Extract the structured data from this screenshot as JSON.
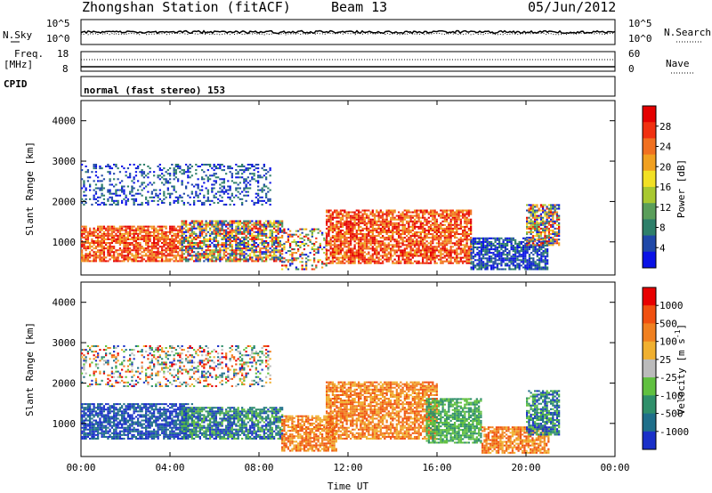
{
  "header": {
    "station": "Zhongshan Station (fitACF)",
    "beam": "Beam 13",
    "date": "05/Jun/2012"
  },
  "noise_panel": {
    "left_label": "N.Sky",
    "right_label": "N.Search",
    "left_ticks": [
      "10^5",
      "10^0"
    ],
    "right_ticks": [
      "10^5",
      "10^0"
    ]
  },
  "freq_panel": {
    "left_label_1": "Freq.",
    "left_label_2": "[MHz]",
    "right_label": "Nave",
    "left_ticks": [
      "18",
      "8"
    ],
    "right_ticks": [
      "60",
      "0"
    ]
  },
  "cpid": {
    "label": "CPID",
    "text": "normal (fast stereo) 153"
  },
  "chart_data": [
    {
      "type": "heatmap",
      "title": "",
      "xlabel": "",
      "ylabel": "Slant Range [km]",
      "x_ticks": [
        "00:00",
        "04:00",
        "08:00",
        "12:00",
        "16:00",
        "20:00",
        "00:00"
      ],
      "y_ticks": [
        "1000",
        "2000",
        "3000",
        "4000"
      ],
      "xlim_hours": [
        0,
        24
      ],
      "ylim_km": [
        180,
        4500
      ],
      "colorbar": {
        "label": "Power [dB]",
        "ticks": [
          "28",
          "24",
          "20",
          "16",
          "12",
          "8",
          "4"
        ],
        "range": [
          0,
          30
        ],
        "colors": [
          "#0a12e6",
          "#1f48a8",
          "#2e7f6a",
          "#5a9e5a",
          "#a8c830",
          "#f2e024",
          "#f0a020",
          "#f07020",
          "#f03010",
          "#e40000"
        ]
      },
      "bands": [
        {
          "t": [
            0.0,
            4.5
          ],
          "r": [
            500,
            1400
          ],
          "level": "high"
        },
        {
          "t": [
            4.5,
            9.0
          ],
          "r": [
            500,
            1500
          ],
          "level": "mixed"
        },
        {
          "t": [
            9.0,
            11.0
          ],
          "r": [
            300,
            1300
          ],
          "level": "sparse"
        },
        {
          "t": [
            11.0,
            17.5
          ],
          "r": [
            450,
            1800
          ],
          "level": "high"
        },
        {
          "t": [
            17.5,
            21.0
          ],
          "r": [
            300,
            1100
          ],
          "level": "low"
        },
        {
          "t": [
            20.0,
            21.5
          ],
          "r": [
            900,
            1900
          ],
          "level": "mixed"
        },
        {
          "t": [
            0.0,
            8.5
          ],
          "r": [
            1900,
            2900
          ],
          "level": "low"
        }
      ]
    },
    {
      "type": "heatmap",
      "title": "",
      "xlabel": "Time UT",
      "ylabel": "Slant Range [km]",
      "x_ticks": [
        "00:00",
        "04:00",
        "08:00",
        "12:00",
        "16:00",
        "20:00",
        "00:00"
      ],
      "y_ticks": [
        "1000",
        "2000",
        "3000",
        "4000"
      ],
      "xlim_hours": [
        0,
        24
      ],
      "ylim_km": [
        180,
        4500
      ],
      "colorbar": {
        "label": "Velocity [m s^-1]",
        "unit_label": "Velocity",
        "unit_bracket": "[m s",
        "unit_exp": "-1",
        "unit_close": "]",
        "ticks": [
          "1000",
          "500",
          "100",
          "25",
          "-25",
          "-100",
          "-500",
          "-1000"
        ],
        "colors": [
          "#1a30c8",
          "#1f6f8a",
          "#2f8f6a",
          "#60c040",
          "#bbbbbb",
          "#f0b030",
          "#f08020",
          "#f05010",
          "#e80000"
        ]
      },
      "bands": [
        {
          "t": [
            0.0,
            5.0
          ],
          "r": [
            600,
            1500
          ],
          "level": "blue"
        },
        {
          "t": [
            4.5,
            9.0
          ],
          "r": [
            600,
            1400
          ],
          "level": "greenblue"
        },
        {
          "t": [
            9.0,
            11.5
          ],
          "r": [
            300,
            1200
          ],
          "level": "orange"
        },
        {
          "t": [
            11.0,
            16.0
          ],
          "r": [
            600,
            2000
          ],
          "level": "orange"
        },
        {
          "t": [
            15.5,
            18.0
          ],
          "r": [
            500,
            1600
          ],
          "level": "green"
        },
        {
          "t": [
            18.0,
            21.0
          ],
          "r": [
            250,
            900
          ],
          "level": "orange"
        },
        {
          "t": [
            20.0,
            21.5
          ],
          "r": [
            700,
            1800
          ],
          "level": "greenblue"
        },
        {
          "t": [
            0.0,
            8.5
          ],
          "r": [
            1900,
            2900
          ],
          "level": "mixed"
        }
      ]
    }
  ]
}
